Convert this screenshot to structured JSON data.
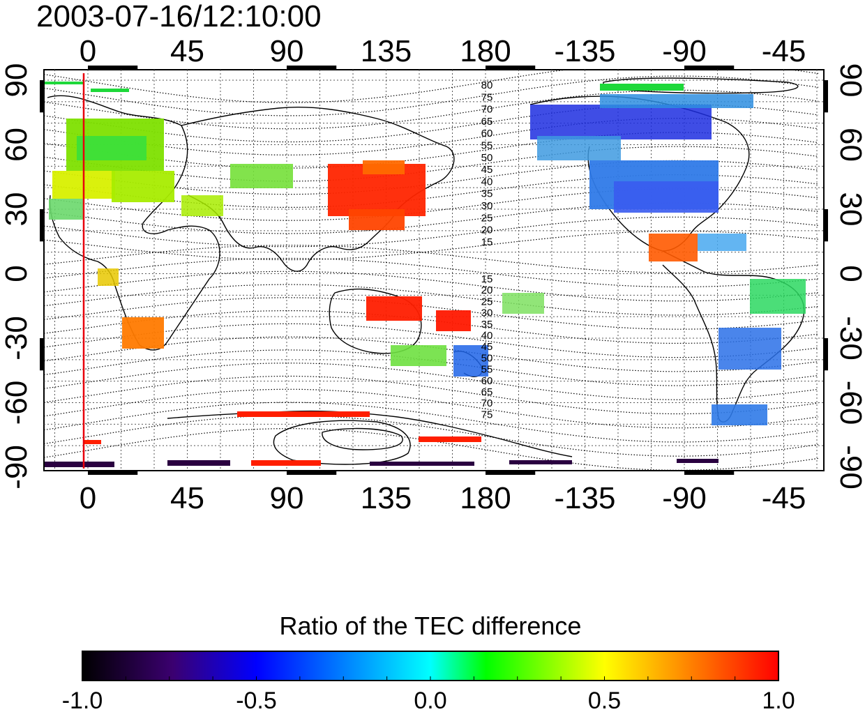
{
  "title": "2003-07-16/12:10:00",
  "map": {
    "lon_ticks_top": [
      "0",
      "45",
      "90",
      "135",
      "180",
      "-135",
      "-90",
      "-45"
    ],
    "lon_ticks_bottom": [
      "0",
      "45",
      "90",
      "135",
      "180",
      "-135",
      "-90",
      "-45"
    ],
    "lat_ticks_left": [
      "90",
      "60",
      "30",
      "0",
      "-30",
      "-60",
      "-90"
    ],
    "lat_ticks_right": [
      "90",
      "60",
      "30",
      "0",
      "-30",
      "-60",
      "-90"
    ],
    "contour_labels_north": [
      "80",
      "75",
      "70",
      "65",
      "60",
      "55",
      "50",
      "45",
      "40",
      "35",
      "30",
      "25",
      "20",
      "15"
    ],
    "contour_labels_south": [
      "15",
      "20",
      "25",
      "30",
      "35",
      "40",
      "45",
      "50",
      "55",
      "60",
      "65",
      "70",
      "75"
    ],
    "terminator_color": "#e8000b"
  },
  "colorbar": {
    "title": "Ratio of the TEC difference",
    "ticks": [
      "-1.0",
      "-0.5",
      "0.0",
      "0.5",
      "1.0"
    ],
    "min": -1.0,
    "max": 1.0,
    "stops": [
      "#000000",
      "#3b0070",
      "#0000ff",
      "#00ffff",
      "#00ff00",
      "#ffff00",
      "#ff0000"
    ]
  }
}
